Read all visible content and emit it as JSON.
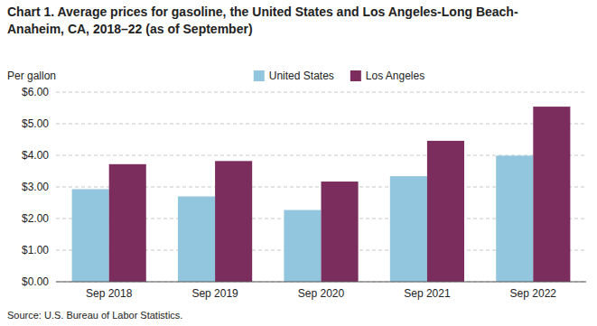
{
  "chart_data": {
    "type": "bar",
    "title": "Chart 1. Average prices for gasoline, the United States and Los Angeles-Long Beach-\nAnaheim, CA, 2018–22 (as of September)",
    "y_label": "Per gallon",
    "source": "Source: U.S. Bureau of Labor Statistics.",
    "categories": [
      "Sep 2018",
      "Sep 2019",
      "Sep 2020",
      "Sep 2021",
      "Sep 2022"
    ],
    "series": [
      {
        "name": "United States",
        "color": "#92C5DE",
        "values": [
          2.93,
          2.7,
          2.27,
          3.34,
          3.99
        ]
      },
      {
        "name": "Los Angeles",
        "color": "#7B2D5E",
        "values": [
          3.72,
          3.82,
          3.17,
          4.46,
          5.54
        ]
      }
    ],
    "ylim": [
      0,
      6.0
    ],
    "yticks": [
      {
        "value": 0.0,
        "label": "$0.00"
      },
      {
        "value": 1.0,
        "label": "$1.00"
      },
      {
        "value": 2.0,
        "label": "$2.00"
      },
      {
        "value": 3.0,
        "label": "$3.00"
      },
      {
        "value": 4.0,
        "label": "$4.00"
      },
      {
        "value": 5.0,
        "label": "$5.00"
      },
      {
        "value": 6.0,
        "label": "$6.00"
      }
    ],
    "grid": true,
    "legend": "top"
  }
}
